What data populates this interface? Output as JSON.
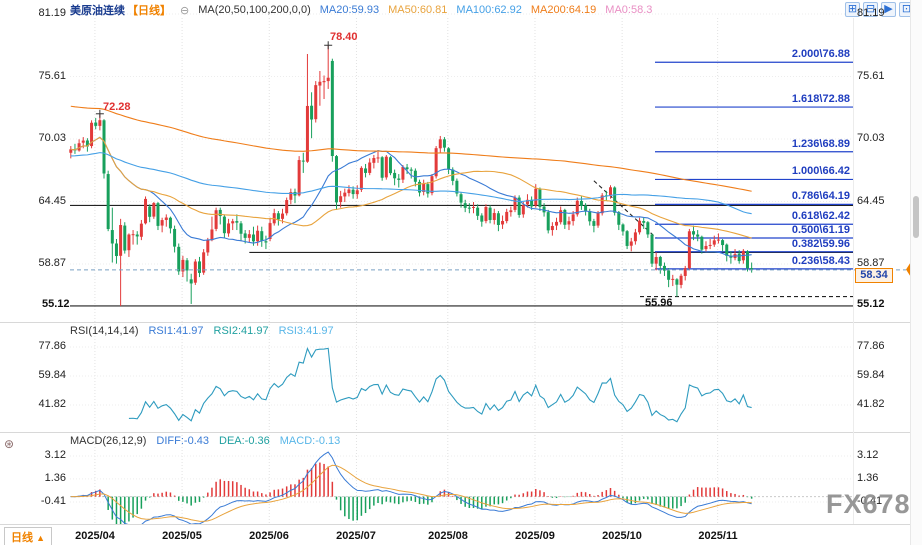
{
  "header": {
    "symbol": "美原油连续",
    "period": "【日线】",
    "settings_icon": "⊖",
    "ma_settings": "MA(20,50,100,200,0,0)",
    "ma20": "MA20:59.93",
    "ma50": "MA50:60.81",
    "ma100": "MA100:62.92",
    "ma200": "MA200:64.19",
    "ma0": "MA0:58.3"
  },
  "toolbar": {
    "icons": [
      "⊞",
      "⊟",
      "▶",
      "⊡"
    ]
  },
  "panels": {
    "rsi": {
      "title": "RSI(14,14,14)",
      "rsi1": "RSI1:41.97",
      "rsi2": "RSI2:41.97",
      "rsi3": "RSI3:41.97"
    },
    "macd": {
      "title": "MACD(26,12,9)",
      "diff": "DIFF:-0.43",
      "dea": "DEA:-0.36",
      "macd": "MACD:-0.13"
    }
  },
  "annotations": {
    "high": "78.40",
    "april_high": "72.28",
    "oct_low": "55.96",
    "support_left": "55.12",
    "support_right": "55.12",
    "last_price_tag": "58.34"
  },
  "bottom_tab": {
    "label": "日线",
    "arrow": "▲"
  },
  "left_gear_icon": "⊛",
  "watermark": "FX678",
  "chart_data": {
    "type": "candlestick",
    "title": "美原油连续 日线",
    "last_price": 58.34,
    "ylim": [
      54.0,
      81.9
    ],
    "colors": {
      "up": "#e23a3a",
      "down": "#18a05c"
    },
    "y_ticks_price": [
      81.19,
      75.61,
      70.03,
      64.45,
      58.87
    ],
    "month_ticks": [
      {
        "index": 6,
        "label": "2025/04"
      },
      {
        "index": 27,
        "label": "2025/05"
      },
      {
        "index": 48,
        "label": "2025/06"
      },
      {
        "index": 69,
        "label": "2025/07"
      },
      {
        "index": 91,
        "label": "2025/08"
      },
      {
        "index": 112,
        "label": "2025/09"
      },
      {
        "index": 133,
        "label": "2025/10"
      },
      {
        "index": 156,
        "label": "2025/11"
      }
    ],
    "ma": [
      {
        "period": 20,
        "color": "#3a7bd5"
      },
      {
        "period": 50,
        "color": "#e8a33d"
      },
      {
        "period": 100,
        "color": "#45a0e6",
        "seed": 68.5,
        "seed_weight": 35
      },
      {
        "period": 200,
        "color": "#ef7d1a",
        "seed": 73.0,
        "seed_weight": 80
      }
    ],
    "fibonacci": {
      "x_start": 655,
      "labels": [
        "2.000\\76.88",
        "1.618\\72.88",
        "1.236\\68.89",
        "1.000\\66.42",
        "0.786\\64.19",
        "0.618\\62.42",
        "0.500\\61.19",
        "0.382\\59.96",
        "0.236\\58.43"
      ],
      "prices": [
        76.88,
        72.88,
        68.89,
        66.42,
        64.19,
        62.42,
        61.19,
        59.96,
        58.43
      ]
    },
    "level_lines": [
      {
        "price": 64.1
      },
      {
        "price": 59.9,
        "from_index": 43
      },
      {
        "price": 55.12
      },
      {
        "price": 55.96,
        "from_x": 640,
        "dash": "4 3"
      }
    ],
    "trend_line": {
      "from_index": 126,
      "from_price": 66.3,
      "to_index": 141,
      "to_price": 61.2,
      "dash": "4 3"
    },
    "markers": [
      {
        "index": 7,
        "price": 72.28
      },
      {
        "index": 62,
        "price": 78.4
      }
    ],
    "rsi": {
      "period": 14,
      "y_ticks": [
        77.86,
        59.84,
        41.82
      ],
      "last": 41.97,
      "color": "#2e9bbf"
    },
    "macd": {
      "fast": 12,
      "slow": 26,
      "signal": 9,
      "y_ticks": [
        3.12,
        1.36,
        -0.41
      ],
      "diff_color": "#3a7bd5",
      "dea_color": "#e8a33d",
      "last": {
        "diff": -0.43,
        "dea": -0.36,
        "macd": -0.13
      }
    },
    "ohlc": [
      [
        68.8,
        69.4,
        68.3,
        69.11
      ],
      [
        69.1,
        69.6,
        68.7,
        69.0
      ],
      [
        69.0,
        70.0,
        68.9,
        69.65
      ],
      [
        69.7,
        70.2,
        69.2,
        69.89
      ],
      [
        69.9,
        70.1,
        68.9,
        69.36
      ],
      [
        69.4,
        71.7,
        69.2,
        71.48
      ],
      [
        71.5,
        71.9,
        70.9,
        71.2
      ],
      [
        71.2,
        72.28,
        70.8,
        71.71
      ],
      [
        71.7,
        71.8,
        66.5,
        66.95
      ],
      [
        66.9,
        67.2,
        61.8,
        61.99
      ],
      [
        61.9,
        63.9,
        59.0,
        60.7
      ],
      [
        60.7,
        61.1,
        58.9,
        59.58
      ],
      [
        59.6,
        62.9,
        55.12,
        62.35
      ],
      [
        62.3,
        62.6,
        59.8,
        60.07
      ],
      [
        60.1,
        61.6,
        59.5,
        61.5
      ],
      [
        61.5,
        61.9,
        60.6,
        61.53
      ],
      [
        61.5,
        61.8,
        60.6,
        61.33
      ],
      [
        61.3,
        62.8,
        61.0,
        62.47
      ],
      [
        62.5,
        64.9,
        62.4,
        64.68
      ],
      [
        64.0,
        64.2,
        62.6,
        63.08
      ],
      [
        63.1,
        64.4,
        62.9,
        64.31
      ],
      [
        64.3,
        64.4,
        61.9,
        62.27
      ],
      [
        62.3,
        63.0,
        61.7,
        62.79
      ],
      [
        62.8,
        63.3,
        62.2,
        63.02
      ],
      [
        63.0,
        63.1,
        61.6,
        62.05
      ],
      [
        62.0,
        62.3,
        59.9,
        60.42
      ],
      [
        60.4,
        60.7,
        57.9,
        58.21
      ],
      [
        58.2,
        59.6,
        57.7,
        59.24
      ],
      [
        59.2,
        59.4,
        57.3,
        58.29
      ],
      [
        57.5,
        58.0,
        55.3,
        57.13
      ],
      [
        57.2,
        59.3,
        57.0,
        59.09
      ],
      [
        59.1,
        59.5,
        57.7,
        58.07
      ],
      [
        58.1,
        60.2,
        57.9,
        59.91
      ],
      [
        59.9,
        61.2,
        59.6,
        61.02
      ],
      [
        61.0,
        63.1,
        60.9,
        61.95
      ],
      [
        62.0,
        63.9,
        61.8,
        63.67
      ],
      [
        63.7,
        63.9,
        62.4,
        63.15
      ],
      [
        63.1,
        63.3,
        61.2,
        61.62
      ],
      [
        61.6,
        62.9,
        61.3,
        62.49
      ],
      [
        62.5,
        62.9,
        61.9,
        62.69
      ],
      [
        62.7,
        63.3,
        61.9,
        62.56
      ],
      [
        62.5,
        62.7,
        60.9,
        61.57
      ],
      [
        61.6,
        61.9,
        60.7,
        61.2
      ],
      [
        61.2,
        61.9,
        60.8,
        61.53
      ],
      [
        61.5,
        62.2,
        60.5,
        60.89
      ],
      [
        60.9,
        62.3,
        60.5,
        61.84
      ],
      [
        61.8,
        62.2,
        60.4,
        60.94
      ],
      [
        60.9,
        61.4,
        60.2,
        60.79
      ],
      [
        61.1,
        63.0,
        60.9,
        62.52
      ],
      [
        62.5,
        63.8,
        62.3,
        63.41
      ],
      [
        63.4,
        63.6,
        62.3,
        62.85
      ],
      [
        62.9,
        63.8,
        62.5,
        63.37
      ],
      [
        63.4,
        64.8,
        63.2,
        64.58
      ],
      [
        64.6,
        65.6,
        64.2,
        65.29
      ],
      [
        65.3,
        65.6,
        64.3,
        64.98
      ],
      [
        65.0,
        68.5,
        64.9,
        68.15
      ],
      [
        68.1,
        68.8,
        67.0,
        68.04
      ],
      [
        68.0,
        77.62,
        67.9,
        72.98
      ],
      [
        73.0,
        74.2,
        70.1,
        71.77
      ],
      [
        71.8,
        75.2,
        71.5,
        74.84
      ],
      [
        74.8,
        76.1,
        73.0,
        75.14
      ],
      [
        75.1,
        75.7,
        73.6,
        75.2
      ],
      [
        75.2,
        78.4,
        74.5,
        75.5
      ],
      [
        77.0,
        77.2,
        68.0,
        68.51
      ],
      [
        68.5,
        68.6,
        63.7,
        64.37
      ],
      [
        64.4,
        65.4,
        63.9,
        64.92
      ],
      [
        64.9,
        65.6,
        64.4,
        65.24
      ],
      [
        65.2,
        65.9,
        64.9,
        65.52
      ],
      [
        65.5,
        65.8,
        64.7,
        65.11
      ],
      [
        65.1,
        65.9,
        64.7,
        65.45
      ],
      [
        65.5,
        67.6,
        65.3,
        67.45
      ],
      [
        67.4,
        67.8,
        66.6,
        67.0
      ],
      [
        67.0,
        68.3,
        66.8,
        67.93
      ],
      [
        67.9,
        68.6,
        67.4,
        68.33
      ],
      [
        68.3,
        68.9,
        67.9,
        68.38
      ],
      [
        68.4,
        68.5,
        66.3,
        66.57
      ],
      [
        66.6,
        68.6,
        66.4,
        68.45
      ],
      [
        68.4,
        68.5,
        66.8,
        66.98
      ],
      [
        67.0,
        67.3,
        65.9,
        66.52
      ],
      [
        66.5,
        66.9,
        65.7,
        66.38
      ],
      [
        66.4,
        67.7,
        66.1,
        67.54
      ],
      [
        67.5,
        67.8,
        66.9,
        67.34
      ],
      [
        67.3,
        67.5,
        66.5,
        67.2
      ],
      [
        67.2,
        67.4,
        65.8,
        66.21
      ],
      [
        66.2,
        66.4,
        64.9,
        65.25
      ],
      [
        65.3,
        66.4,
        65.0,
        66.03
      ],
      [
        66.0,
        66.2,
        64.8,
        65.16
      ],
      [
        65.2,
        66.9,
        65.0,
        66.71
      ],
      [
        66.7,
        69.4,
        66.5,
        69.21
      ],
      [
        69.2,
        70.3,
        68.8,
        70.0
      ],
      [
        70.0,
        70.2,
        68.9,
        69.26
      ],
      [
        69.2,
        69.3,
        66.9,
        67.33
      ],
      [
        67.3,
        67.5,
        65.9,
        66.29
      ],
      [
        66.3,
        66.5,
        64.9,
        65.16
      ],
      [
        65.1,
        65.3,
        63.9,
        64.35
      ],
      [
        64.3,
        64.6,
        63.5,
        63.88
      ],
      [
        63.9,
        64.3,
        63.4,
        63.88
      ],
      [
        63.9,
        64.4,
        63.4,
        63.96
      ],
      [
        63.9,
        64.2,
        62.8,
        63.17
      ],
      [
        63.2,
        63.4,
        62.2,
        62.65
      ],
      [
        62.7,
        64.2,
        62.5,
        63.96
      ],
      [
        63.9,
        64.1,
        62.5,
        62.8
      ],
      [
        62.8,
        63.8,
        62.4,
        63.42
      ],
      [
        63.4,
        63.6,
        61.8,
        62.35
      ],
      [
        62.4,
        63.2,
        62.0,
        62.71
      ],
      [
        62.7,
        63.8,
        62.5,
        63.52
      ],
      [
        63.5,
        64.0,
        63.1,
        63.66
      ],
      [
        63.7,
        65.0,
        63.5,
        64.8
      ],
      [
        64.8,
        65.0,
        63.0,
        63.25
      ],
      [
        63.3,
        64.4,
        63.0,
        64.15
      ],
      [
        64.2,
        65.1,
        63.9,
        64.6
      ],
      [
        64.6,
        64.9,
        63.7,
        64.01
      ],
      [
        64.1,
        66.0,
        63.9,
        65.59
      ],
      [
        65.6,
        65.7,
        63.6,
        63.97
      ],
      [
        64.0,
        64.3,
        63.1,
        63.48
      ],
      [
        63.5,
        63.7,
        61.6,
        61.87
      ],
      [
        61.9,
        62.6,
        61.4,
        62.26
      ],
      [
        62.3,
        63.0,
        61.9,
        62.63
      ],
      [
        62.6,
        64.0,
        62.4,
        63.67
      ],
      [
        63.7,
        63.8,
        62.0,
        62.37
      ],
      [
        62.4,
        63.1,
        61.9,
        62.69
      ],
      [
        62.7,
        63.6,
        62.3,
        63.3
      ],
      [
        63.3,
        64.8,
        63.1,
        64.52
      ],
      [
        64.5,
        64.9,
        63.7,
        64.05
      ],
      [
        64.1,
        64.3,
        63.2,
        63.57
      ],
      [
        63.6,
        63.8,
        62.3,
        62.68
      ],
      [
        62.7,
        62.9,
        61.7,
        62.27
      ],
      [
        62.3,
        63.6,
        62.1,
        63.41
      ],
      [
        63.4,
        65.2,
        63.2,
        64.99
      ],
      [
        65.0,
        65.4,
        64.5,
        64.98
      ],
      [
        65.0,
        65.9,
        64.7,
        65.72
      ],
      [
        65.7,
        65.8,
        63.2,
        63.45
      ],
      [
        63.5,
        63.6,
        61.9,
        62.37
      ],
      [
        62.4,
        62.5,
        61.4,
        61.78
      ],
      [
        61.8,
        61.9,
        60.2,
        60.48
      ],
      [
        60.5,
        61.2,
        60.0,
        60.88
      ],
      [
        60.9,
        62.0,
        60.6,
        61.69
      ],
      [
        61.7,
        63.0,
        61.5,
        62.73
      ],
      [
        62.7,
        63.0,
        62.0,
        62.55
      ],
      [
        62.6,
        62.7,
        61.2,
        61.51
      ],
      [
        61.5,
        61.6,
        58.6,
        58.9
      ],
      [
        58.9,
        59.9,
        58.3,
        59.49
      ],
      [
        59.5,
        59.6,
        58.0,
        58.7
      ],
      [
        58.7,
        59.0,
        57.8,
        58.27
      ],
      [
        58.3,
        58.5,
        56.8,
        57.46
      ],
      [
        57.5,
        57.9,
        56.9,
        57.54
      ],
      [
        57.5,
        57.6,
        55.96,
        57.02
      ],
      [
        57.0,
        58.0,
        56.7,
        57.82
      ],
      [
        57.8,
        58.7,
        57.4,
        58.5
      ],
      [
        58.5,
        62.0,
        58.3,
        61.79
      ],
      [
        61.8,
        62.3,
        61.0,
        61.5
      ],
      [
        61.5,
        61.9,
        60.9,
        61.31
      ],
      [
        61.3,
        61.4,
        59.8,
        60.15
      ],
      [
        60.2,
        60.9,
        59.9,
        60.48
      ],
      [
        60.5,
        61.1,
        60.2,
        60.57
      ],
      [
        60.6,
        61.4,
        60.4,
        60.98
      ],
      [
        61.0,
        61.6,
        60.7,
        61.05
      ],
      [
        61.0,
        61.1,
        60.0,
        60.56
      ],
      [
        60.6,
        60.7,
        59.1,
        59.6
      ],
      [
        59.6,
        60.0,
        58.9,
        59.43
      ],
      [
        59.4,
        60.2,
        59.2,
        59.75
      ],
      [
        59.8,
        60.1,
        58.9,
        59.13
      ],
      [
        59.2,
        60.2,
        58.9,
        60.04
      ],
      [
        60.0,
        60.1,
        58.2,
        58.49
      ],
      [
        58.5,
        59.0,
        58.1,
        58.34
      ]
    ]
  }
}
